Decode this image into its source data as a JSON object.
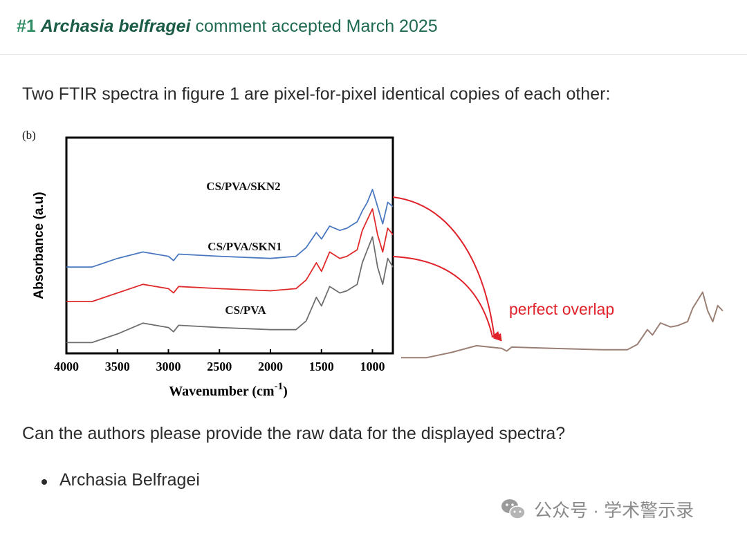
{
  "header": {
    "number": "#1",
    "species": "Archasia belfragei",
    "status": "comment accepted March 2025"
  },
  "intro_text": "Two FTIR spectra in figure 1 are pixel-for-pixel identical copies of each other:",
  "figure": {
    "panel_label": "(b)",
    "ylabel": "Absorbance (a.u)",
    "xlabel_main": "Wavenumber (cm",
    "xlabel_sup": "-1",
    "xlabel_close": ")",
    "x_ticks": [
      "4000",
      "3500",
      "3000",
      "2500",
      "2000",
      "1500",
      "1000"
    ],
    "series_labels": [
      "CS/PVA/SKN2",
      "CS/PVA/SKN1",
      "CS/PVA"
    ],
    "annotation": "perfect overlap",
    "colors": {
      "skn2": "#4a78c0",
      "skn1": "#e02a2a",
      "cspva": "#6e6e6e",
      "overlay": "#9a7f74",
      "arrow": "#e0232a"
    }
  },
  "chart_data": {
    "type": "line",
    "xlabel": "Wavenumber (cm-1)",
    "ylabel": "Absorbance (a.u)",
    "xlim": [
      4000,
      800
    ],
    "x_ticks": [
      4000,
      3500,
      3000,
      2500,
      2000,
      1500,
      1000
    ],
    "series": [
      {
        "name": "CS/PVA/SKN2",
        "x": [
          4000,
          3750,
          3500,
          3250,
          3000,
          2950,
          2900,
          2500,
          2000,
          1750,
          1650,
          1550,
          1500,
          1420,
          1320,
          1250,
          1150,
          1100,
          1050,
          1000,
          950,
          900,
          850,
          800
        ],
        "y": [
          0.4,
          0.4,
          0.44,
          0.47,
          0.45,
          0.43,
          0.46,
          0.45,
          0.44,
          0.45,
          0.49,
          0.56,
          0.53,
          0.59,
          0.57,
          0.58,
          0.61,
          0.66,
          0.7,
          0.76,
          0.68,
          0.6,
          0.7,
          0.68
        ]
      },
      {
        "name": "CS/PVA/SKN1",
        "x": [
          4000,
          3750,
          3500,
          3250,
          3000,
          2950,
          2900,
          2500,
          2000,
          1750,
          1650,
          1550,
          1500,
          1420,
          1320,
          1250,
          1150,
          1100,
          1050,
          1000,
          950,
          900,
          850,
          800
        ],
        "y": [
          0.24,
          0.24,
          0.28,
          0.32,
          0.3,
          0.28,
          0.31,
          0.3,
          0.29,
          0.3,
          0.34,
          0.42,
          0.38,
          0.47,
          0.44,
          0.45,
          0.48,
          0.57,
          0.62,
          0.67,
          0.55,
          0.47,
          0.58,
          0.55
        ]
      },
      {
        "name": "CS/PVA",
        "x": [
          4000,
          3750,
          3500,
          3250,
          3000,
          2950,
          2900,
          2500,
          2000,
          1750,
          1650,
          1550,
          1500,
          1420,
          1320,
          1250,
          1150,
          1100,
          1050,
          1000,
          950,
          900,
          850,
          800
        ],
        "y": [
          0.05,
          0.05,
          0.09,
          0.14,
          0.12,
          0.1,
          0.13,
          0.12,
          0.11,
          0.11,
          0.15,
          0.26,
          0.22,
          0.31,
          0.28,
          0.29,
          0.32,
          0.42,
          0.48,
          0.54,
          0.4,
          0.32,
          0.44,
          0.4
        ]
      }
    ]
  },
  "question_text": "Can the authors please provide the raw data for the displayed spectra?",
  "bullets": [
    "Archasia Belfragei"
  ],
  "watermark": {
    "icon": "wechat-icon",
    "text": "公众号 · 学术警示录"
  }
}
